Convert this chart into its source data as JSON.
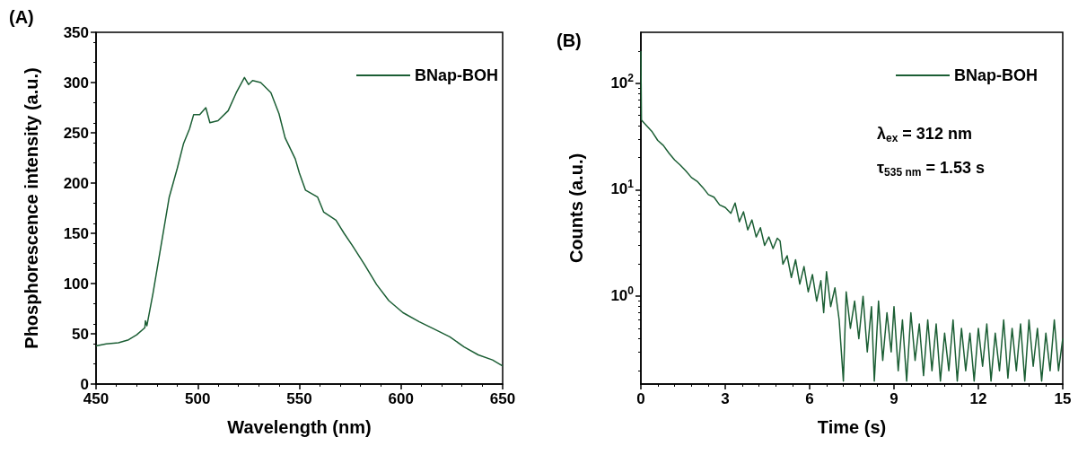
{
  "chart_data": [
    {
      "type": "line",
      "title": "(A)",
      "xlabel": "Wavelength (nm)",
      "ylabel": "Phosphorescence intensity (a.u.)",
      "xlim": [
        450,
        650
      ],
      "xticks": [
        450,
        500,
        550,
        600,
        650
      ],
      "ylim": [
        0,
        350
      ],
      "yticks": [
        0,
        50,
        100,
        150,
        200,
        250,
        300,
        350
      ],
      "grid": false,
      "legend": "top right",
      "marker": "none",
      "series": [
        {
          "name": "BNap-BOH",
          "color": "#1b5e34",
          "x": [
            450,
            455,
            461,
            466,
            470,
            474,
            474.3,
            475,
            478,
            482,
            486,
            490,
            493,
            496,
            498,
            501,
            504,
            506,
            510,
            515,
            519,
            523,
            525,
            527,
            531,
            536,
            540,
            543,
            548,
            550,
            553,
            559,
            562,
            568,
            572,
            576,
            582,
            588,
            594,
            601,
            609,
            616,
            624,
            631,
            638,
            645,
            650
          ],
          "values": [
            38,
            40,
            41,
            44,
            49,
            56,
            63,
            58,
            90,
            138,
            186,
            215,
            239,
            254,
            268,
            268,
            275,
            260,
            262,
            272,
            290,
            305,
            298,
            302,
            300,
            290,
            269,
            245,
            224,
            210,
            193,
            186,
            171,
            163,
            150,
            138,
            119,
            99,
            83,
            71,
            62,
            55,
            47,
            37,
            29,
            24,
            18
          ]
        }
      ]
    },
    {
      "type": "line",
      "title": "(B)",
      "xlabel": "Time (s)",
      "ylabel": "Counts (a.u.)",
      "log": "y",
      "xlim": [
        0,
        15
      ],
      "xticks": [
        0,
        3,
        6,
        9,
        12,
        15
      ],
      "ylim": [
        0.15,
        300
      ],
      "yticks": [
        {
          "value": 1,
          "label": "10$^{0}$"
        },
        {
          "value": 10,
          "label": "10$^{1}$"
        },
        {
          "value": 100,
          "label": "10$^{2}$"
        }
      ],
      "grid": false,
      "legend": "top right",
      "marker": "none",
      "annotations": [
        "λ$_{ex}$ = 312 nm",
        "τ$_{535 nm}$ = 1.53 s"
      ],
      "series": [
        {
          "name": "BNap-BOH",
          "color": "#1b5e34",
          "x": [
            0,
            0.02,
            0.2,
            0.4,
            0.6,
            0.8,
            1.0,
            1.2,
            1.4,
            1.6,
            1.8,
            2.0,
            2.2,
            2.4,
            2.6,
            2.8,
            3.0,
            3.2,
            3.35,
            3.5,
            3.65,
            3.8,
            3.95,
            4.1,
            4.25,
            4.4,
            4.55,
            4.7,
            4.85,
            4.95,
            5.05,
            5.2,
            5.35,
            5.5,
            5.65,
            5.8,
            5.95,
            6.1,
            6.25,
            6.4,
            6.5,
            6.6,
            6.75,
            6.9,
            7.05,
            7.2,
            7.3,
            7.45,
            7.6,
            7.75,
            7.9,
            8.05,
            8.2,
            8.3,
            8.45,
            8.6,
            8.75,
            8.9,
            9.0,
            9.15,
            9.3,
            9.45,
            9.6,
            9.75,
            9.9,
            10.05,
            10.2,
            10.35,
            10.5,
            10.65,
            10.8,
            10.95,
            11.1,
            11.25,
            11.4,
            11.55,
            11.7,
            11.85,
            12.0,
            12.15,
            12.3,
            12.45,
            12.6,
            12.75,
            12.9,
            13.05,
            13.2,
            13.35,
            13.5,
            13.65,
            13.8,
            13.95,
            14.1,
            14.25,
            14.4,
            14.55,
            14.7,
            14.85,
            15
          ],
          "values": [
            200,
            45,
            40,
            35,
            29,
            26,
            22,
            19,
            17,
            15,
            13,
            12,
            10.5,
            9,
            8.5,
            7.2,
            6.8,
            6.0,
            7.5,
            5.0,
            6.2,
            4.2,
            5.2,
            3.6,
            4.4,
            3.0,
            3.6,
            2.8,
            3.5,
            3.3,
            2.0,
            2.4,
            1.5,
            2.2,
            1.3,
            1.9,
            1.1,
            1.6,
            0.9,
            1.4,
            0.7,
            1.7,
            0.8,
            1.2,
            0.6,
            0.16,
            1.1,
            0.5,
            0.9,
            0.4,
            1.0,
            0.3,
            0.8,
            0.16,
            0.9,
            0.25,
            0.7,
            0.3,
            0.8,
            0.2,
            0.6,
            0.16,
            0.7,
            0.25,
            0.55,
            0.18,
            0.6,
            0.2,
            0.55,
            0.16,
            0.45,
            0.2,
            0.6,
            0.16,
            0.5,
            0.2,
            0.45,
            0.16,
            0.5,
            0.22,
            0.55,
            0.16,
            0.45,
            0.2,
            0.6,
            0.17,
            0.5,
            0.2,
            0.55,
            0.16,
            0.6,
            0.22,
            0.5,
            0.16,
            0.45,
            0.2,
            0.6,
            0.2,
            0.4
          ]
        }
      ]
    }
  ]
}
